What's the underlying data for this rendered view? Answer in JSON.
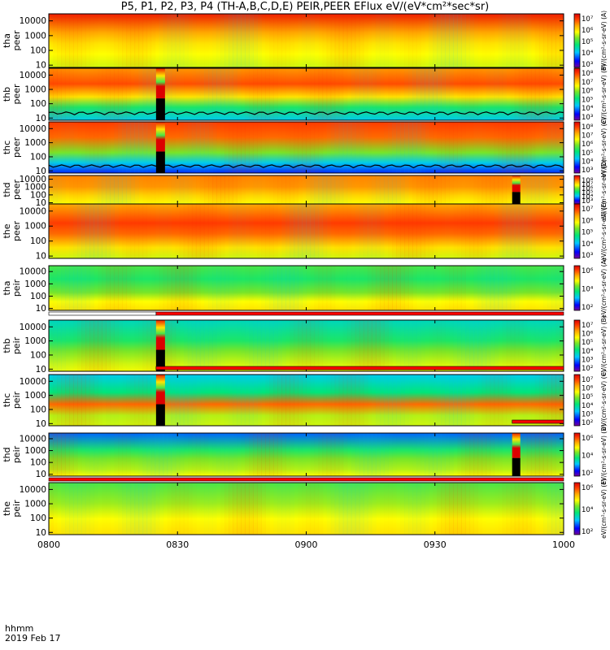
{
  "title": "P5, P1, P2, P3, P4 (TH-A,B,C,D,E) PEIR,PEER EFlux eV/(eV*cm²*sec*sr)",
  "footer": {
    "time_label": "hhmm",
    "date_label": "2019 Feb 17"
  },
  "colors": {
    "frame": "#000000",
    "bar_red": "#ff0000",
    "trace": "#000000"
  },
  "chart_data": {
    "type": "heatmap",
    "x_ticks": [
      "0800",
      "0830",
      "0900",
      "0930",
      "1000"
    ],
    "x_range": [
      "0800",
      "1000"
    ],
    "ylim_eV": [
      7,
      30000
    ],
    "y_scale": "log",
    "panels": [
      {
        "ylabel": [
          "tha",
          "peer"
        ],
        "yticks": [
          "10000",
          "1000",
          "100",
          "10"
        ],
        "zticks": [
          "10⁷",
          "10⁶",
          "10⁵",
          "10⁴",
          "10³"
        ],
        "gap": false,
        "trace": false,
        "zlabel": "eV/(cm²-s-sr-eV) (A)"
      },
      {
        "ylabel": [
          "thb",
          "peer"
        ],
        "yticks": [
          "10000",
          "1000",
          "100",
          "10"
        ],
        "zticks": [
          "10⁸",
          "10⁷",
          "10⁶",
          "10⁵",
          "10⁴",
          "10³"
        ],
        "gap": true,
        "gap_start": "0825",
        "trace": true,
        "zlabel": "eV/(cm²-s-sr-eV) (B)"
      },
      {
        "ylabel": [
          "thc",
          "peer"
        ],
        "yticks": [
          "10000",
          "1000",
          "100",
          "10"
        ],
        "zticks": [
          "10⁸",
          "10⁷",
          "10⁶",
          "10⁵",
          "10⁴",
          "10³"
        ],
        "gap": true,
        "gap_start": "0825",
        "trace": true,
        "zlabel": "eV/(cm²-s-sr-eV) (C)"
      },
      {
        "ylabel": [
          "thd",
          "peer"
        ],
        "yticks": [
          "10000",
          "1000",
          "100",
          "10"
        ],
        "zticks": [
          "10⁸",
          "10⁷",
          "10⁶",
          "10⁵",
          "10⁴",
          "10³"
        ],
        "gap": true,
        "gap_start": "0948",
        "trace": false,
        "zlabel": "eV/(cm²-s-sr-eV) (D)"
      },
      {
        "ylabel": [
          "the",
          "peer"
        ],
        "yticks": [
          "10000",
          "1000",
          "100",
          "10"
        ],
        "zticks": [
          "10⁷",
          "10⁶",
          "10⁵",
          "10⁴",
          "10³"
        ],
        "gap": false,
        "trace": false,
        "zlabel": "eV/(cm²-s-sr-eV) (E)"
      },
      {
        "ylabel": [
          "tha",
          "peir"
        ],
        "yticks": [
          "10000",
          "1000",
          "100",
          "10"
        ],
        "zticks": [
          "10⁶",
          "10⁴",
          "10²"
        ],
        "gap": false,
        "trace": false,
        "zlabel": "eV/(cm²-s-sr-eV) (A)"
      },
      {
        "ylabel": [
          "thb",
          "peir"
        ],
        "yticks": [
          "10000",
          "1000",
          "100",
          "10"
        ],
        "zticks": [
          "10⁷",
          "10⁶",
          "10⁵",
          "10⁴",
          "10³",
          "10²"
        ],
        "gap": true,
        "gap_start": "0825",
        "trace": false,
        "zlabel": "eV/(cm²-s-sr-eV) (B)"
      },
      {
        "ylabel": [
          "thc",
          "peir"
        ],
        "yticks": [
          "10000",
          "1000",
          "100",
          "10"
        ],
        "zticks": [
          "10⁷",
          "10⁶",
          "10⁵",
          "10⁴",
          "10³",
          "10²"
        ],
        "gap": true,
        "gap_start": "0825",
        "trace": false,
        "zlabel": "eV/(cm²-s-sr-eV) (C)"
      },
      {
        "ylabel": [
          "thd",
          "peir"
        ],
        "yticks": [
          "10000",
          "1000",
          "100",
          "10"
        ],
        "zticks": [
          "10⁶",
          "10⁴",
          "10²"
        ],
        "gap": true,
        "gap_start": "0948",
        "trace": false,
        "zlabel": "eV/(cm²-s-sr-eV) (D)"
      },
      {
        "ylabel": [
          "the",
          "peir"
        ],
        "yticks": [
          "10000",
          "1000",
          "100",
          "10"
        ],
        "zticks": [
          "10⁶",
          "10⁴",
          "10²"
        ],
        "gap": false,
        "trace": false,
        "zlabel": "eV/(cm²-s-sr-eV) (E)"
      }
    ]
  }
}
